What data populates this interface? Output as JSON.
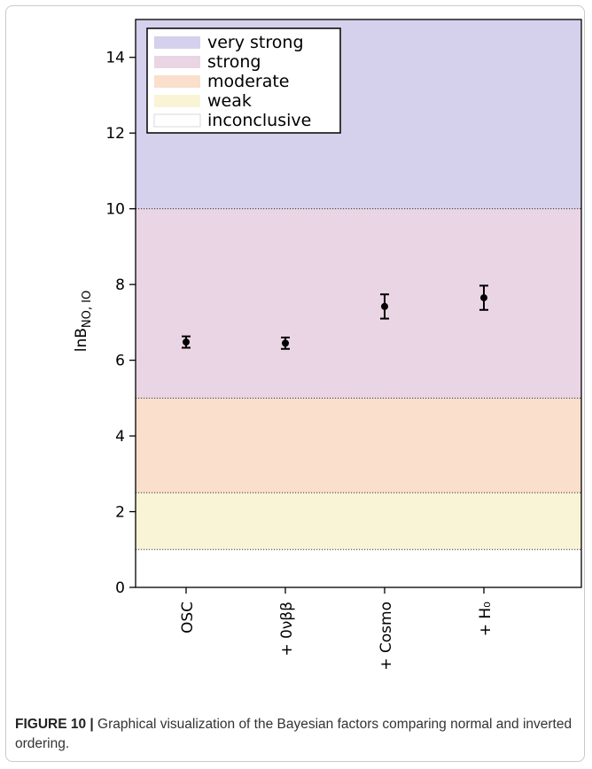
{
  "chart_data": {
    "type": "scatter",
    "title": "",
    "ylabel": "lnB",
    "ylabel_sub": "NO, IO",
    "ylim": [
      0,
      15
    ],
    "yticks": [
      0,
      2,
      4,
      6,
      8,
      10,
      12,
      14
    ],
    "categories": [
      "OSC",
      "+ 0νββ",
      "+ Cosmo",
      "+ H₀"
    ],
    "points": [
      {
        "category": "OSC",
        "value": 6.48,
        "err_low": 0.15,
        "err_high": 0.15
      },
      {
        "category": "+ 0νββ",
        "value": 6.45,
        "err_low": 0.15,
        "err_high": 0.15
      },
      {
        "category": "+ Cosmo",
        "value": 7.42,
        "err_low": 0.32,
        "err_high": 0.32
      },
      {
        "category": "+ H₀",
        "value": 7.65,
        "err_low": 0.32,
        "err_high": 0.32
      }
    ],
    "bands": [
      {
        "label": "very strong",
        "from": 10,
        "to": 15,
        "color": "#d5d1ec"
      },
      {
        "label": "strong",
        "from": 5,
        "to": 10,
        "color": "#e9d5e3"
      },
      {
        "label": "moderate",
        "from": 2.5,
        "to": 5,
        "color": "#f9dfcc"
      },
      {
        "label": "weak",
        "from": 1,
        "to": 2.5,
        "color": "#faf4d6"
      },
      {
        "label": "inconclusive",
        "from": 0,
        "to": 1,
        "color": "#ffffff"
      }
    ],
    "legend_position": "top-left",
    "grid": false
  },
  "caption": {
    "label": "FIGURE 10 |",
    "text": " Graphical visualization of the Bayesian factors comparing normal and inverted ordering."
  }
}
